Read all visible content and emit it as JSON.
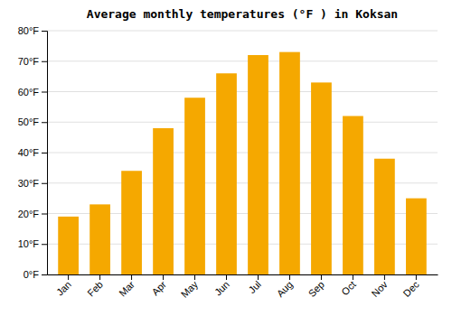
{
  "chart_data": {
    "type": "bar",
    "title": "Average monthly temperatures (°F ) in Koksan",
    "categories": [
      "Jan",
      "Feb",
      "Mar",
      "Apr",
      "May",
      "Jun",
      "Jul",
      "Aug",
      "Sep",
      "Oct",
      "Nov",
      "Dec"
    ],
    "values": [
      19,
      23,
      34,
      48,
      58,
      66,
      72,
      73,
      63,
      52,
      38,
      25
    ],
    "color": "#F5A800",
    "ylim": [
      0,
      80
    ],
    "yticks": [
      {
        "value": 0,
        "label": "0°F"
      },
      {
        "value": 10,
        "label": "10°F"
      },
      {
        "value": 20,
        "label": "20°F"
      },
      {
        "value": 30,
        "label": "30°F"
      },
      {
        "value": 40,
        "label": "40°F"
      },
      {
        "value": 50,
        "label": "50°F"
      },
      {
        "value": 60,
        "label": "60°F"
      },
      {
        "value": 70,
        "label": "70°F"
      },
      {
        "value": 80,
        "label": "80°F"
      }
    ],
    "grid": true
  }
}
